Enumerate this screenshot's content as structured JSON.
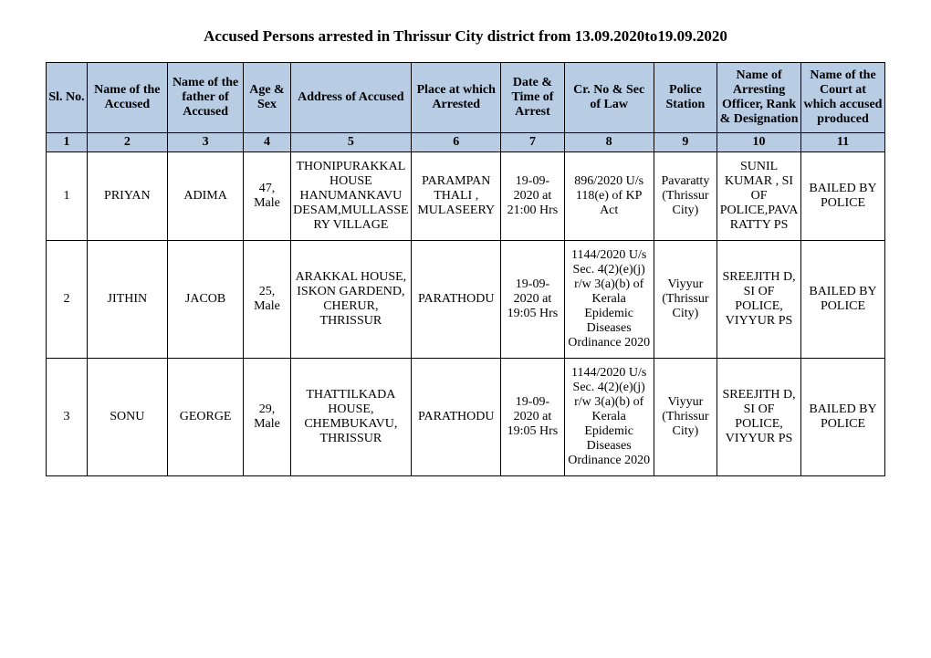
{
  "title": "Accused Persons arrested in   Thrissur City  district from   13.09.2020to19.09.2020",
  "columns": [
    "Sl. No.",
    "Name of the Accused",
    "Name of the father of Accused",
    "Age & Sex",
    "Address of Accused",
    "Place at which Arrested",
    "Date & Time of Arrest",
    "Cr. No & Sec of Law",
    "Police Station",
    "Name of Arresting Officer, Rank & Designation",
    "Name of the Court at which accused produced"
  ],
  "column_index": [
    "1",
    "2",
    "3",
    "4",
    "5",
    "6",
    "7",
    "8",
    "9",
    "10",
    "11"
  ],
  "rows": [
    {
      "sl": "1",
      "accused": "PRIYAN",
      "father": "ADIMA",
      "age_sex": "47, Male",
      "address": "THONIPURAKKAL HOUSE HANUMANKAVU DESAM,MULLASSERY VILLAGE",
      "place": "PARAMPAN THALI , MULASEERY",
      "datetime": "19-09-2020 at 21:00 Hrs",
      "crno": "896/2020 U/s 118(e) of KP Act",
      "station": "Pavaratty (Thrissur City)",
      "officer": "SUNIL KUMAR , SI OF POLICE,PAVARATTY PS",
      "court": "BAILED BY POLICE"
    },
    {
      "sl": "2",
      "accused": "JITHIN",
      "father": "JACOB",
      "age_sex": "25, Male",
      "address": "ARAKKAL HOUSE, ISKON GARDEND, CHERUR, THRISSUR",
      "place": "PARATHODU",
      "datetime": "19-09-2020 at 19:05 Hrs",
      "crno": "1144/2020 U/s Sec. 4(2)(e)(j) r/w 3(a)(b) of Kerala Epidemic Diseases Ordinance 2020",
      "station": "Viyyur (Thrissur City)",
      "officer": "SREEJITH D, SI OF POLICE, VIYYUR PS",
      "court": "BAILED BY POLICE"
    },
    {
      "sl": "3",
      "accused": "SONU",
      "father": "GEORGE",
      "age_sex": "29, Male",
      "address": "THATTILKADA HOUSE, CHEMBUKAVU, THRISSUR",
      "place": "PARATHODU",
      "datetime": "19-09-2020 at 19:05 Hrs",
      "crno": "1144/2020 U/s Sec. 4(2)(e)(j) r/w 3(a)(b) of Kerala Epidemic Diseases Ordinance 2020",
      "station": "Viyyur (Thrissur City)",
      "officer": "SREEJITH D, SI OF POLICE, VIYYUR PS",
      "court": "BAILED BY POLICE"
    }
  ],
  "style": {
    "header_bg": "#b8cce4",
    "border_color": "#000000",
    "font_family": "Times New Roman",
    "title_fontsize": 17,
    "cell_fontsize": 14
  }
}
